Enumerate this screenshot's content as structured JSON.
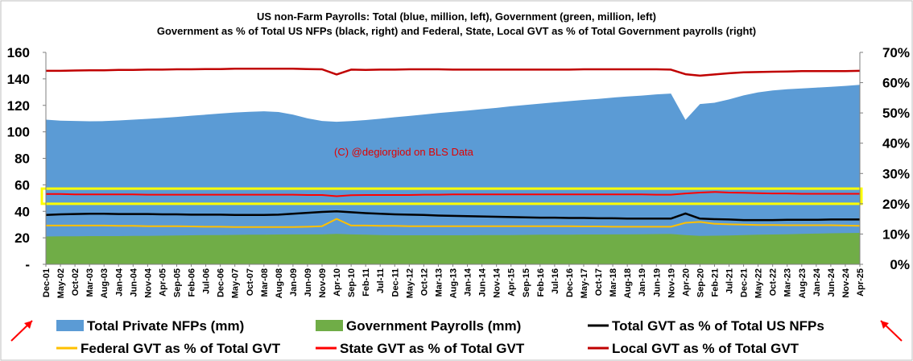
{
  "chart_data": {
    "type": "area",
    "title": "US non-Farm Payrolls: Total (blue, million, left), Government (green, million, left)",
    "subtitle": "Government as % of Total US NFPs (black, right) and Federal, State, Local GVT as % of Total Government payrolls (right)",
    "annotation": "(C) @degiorgiod on BLS Data",
    "x_tick_labels": [
      "Dec-01",
      "May-02",
      "Oct-02",
      "Mar-03",
      "Aug-03",
      "Jan-04",
      "Jun-04",
      "Nov-04",
      "Apr-05",
      "Sep-05",
      "Feb-06",
      "Jul-06",
      "Dec-06",
      "May-07",
      "Oct-07",
      "Mar-08",
      "Aug-08",
      "Jan-09",
      "Jun-09",
      "Nov-09",
      "Apr-10",
      "Sep-10",
      "Feb-11",
      "Jul-11",
      "Dec-11",
      "May-12",
      "Oct-12",
      "Mar-13",
      "Aug-13",
      "Jan-14",
      "Jun-14",
      "Nov-14",
      "Apr-15",
      "Sep-15",
      "Feb-16",
      "Jul-16",
      "Dec-16",
      "May-17",
      "Oct-17",
      "Mar-18",
      "Aug-18",
      "Jan-19",
      "Jun-19",
      "Nov-19",
      "Apr-20",
      "Sep-20",
      "Feb-21",
      "Jul-21",
      "Dec-21",
      "May-22",
      "Oct-22",
      "Mar-23",
      "Aug-23",
      "Jan-24",
      "Jun-24",
      "Nov-24",
      "Apr-25"
    ],
    "y_left": {
      "ticks": [
        "-",
        "20",
        "40",
        "60",
        "80",
        "100",
        "120",
        "140",
        "160"
      ],
      "range": [
        0,
        160
      ],
      "unit": "million"
    },
    "y_right": {
      "ticks": [
        "0%",
        "10%",
        "20%",
        "30%",
        "40%",
        "50%",
        "60%",
        "70%"
      ],
      "range": [
        0,
        70
      ],
      "unit": "%"
    },
    "grid": false,
    "legend_position": "bottom",
    "highlight_box": {
      "y_range_right_percent": [
        20,
        25
      ],
      "color": "#ffff00"
    },
    "series": [
      {
        "name": "Total Private NFPs (mm)",
        "axis": "left",
        "kind": "area",
        "color": "#5b9bd5",
        "values": [
          109.2,
          108.5,
          108.2,
          108.0,
          108.1,
          108.6,
          109.2,
          109.8,
          110.5,
          111.3,
          112.2,
          113.0,
          113.8,
          114.6,
          115.1,
          115.5,
          115.0,
          113.0,
          110.2,
          108.2,
          107.6,
          108.1,
          108.9,
          109.9,
          111.0,
          112.0,
          113.1,
          114.2,
          115.1,
          116.0,
          117.1,
          118.1,
          119.3,
          120.3,
          121.3,
          122.3,
          123.2,
          124.1,
          124.9,
          125.9,
          126.7,
          127.4,
          128.3,
          128.9,
          109.0,
          121.0,
          122.0,
          124.5,
          127.5,
          129.8,
          131.3,
          132.2,
          132.8,
          133.4,
          134.0,
          134.7,
          135.5
        ]
      },
      {
        "name": "Government Payrolls (mm)",
        "axis": "left",
        "kind": "area",
        "color": "#70ad47",
        "values": [
          21.0,
          21.1,
          21.2,
          21.3,
          21.3,
          21.3,
          21.4,
          21.5,
          21.6,
          21.7,
          21.9,
          22.0,
          22.1,
          22.2,
          22.3,
          22.4,
          22.5,
          22.6,
          22.6,
          22.6,
          23.0,
          22.6,
          22.3,
          22.0,
          21.9,
          21.9,
          21.9,
          21.9,
          21.9,
          21.9,
          22.0,
          22.0,
          22.1,
          22.2,
          22.3,
          22.3,
          22.4,
          22.5,
          22.5,
          22.6,
          22.6,
          22.7,
          22.8,
          22.9,
          22.0,
          21.5,
          21.6,
          21.8,
          22.0,
          22.3,
          22.5,
          22.7,
          23.0,
          23.2,
          23.4,
          23.6,
          23.7
        ]
      },
      {
        "name": "Total GVT as % of Total US NFPs",
        "axis": "right",
        "kind": "line",
        "color": "#000000",
        "values": [
          16.3,
          16.5,
          16.6,
          16.7,
          16.7,
          16.6,
          16.6,
          16.6,
          16.5,
          16.5,
          16.4,
          16.4,
          16.4,
          16.3,
          16.3,
          16.3,
          16.4,
          16.7,
          17.0,
          17.3,
          17.5,
          17.2,
          16.9,
          16.7,
          16.5,
          16.4,
          16.3,
          16.1,
          16.0,
          15.9,
          15.8,
          15.7,
          15.6,
          15.5,
          15.4,
          15.4,
          15.3,
          15.3,
          15.2,
          15.2,
          15.1,
          15.1,
          15.1,
          15.1,
          16.8,
          15.1,
          14.9,
          14.8,
          14.6,
          14.6,
          14.6,
          14.7,
          14.7,
          14.7,
          14.8,
          14.8,
          14.8
        ]
      },
      {
        "name": "Federal GVT as % of Total GVT",
        "axis": "right",
        "kind": "line",
        "color": "#ffc000",
        "values": [
          12.8,
          12.8,
          12.8,
          12.8,
          12.8,
          12.7,
          12.7,
          12.6,
          12.6,
          12.6,
          12.5,
          12.4,
          12.4,
          12.3,
          12.3,
          12.3,
          12.3,
          12.3,
          12.4,
          12.6,
          15.0,
          12.8,
          12.8,
          12.7,
          12.7,
          12.6,
          12.6,
          12.6,
          12.6,
          12.6,
          12.6,
          12.6,
          12.6,
          12.6,
          12.6,
          12.6,
          12.6,
          12.5,
          12.5,
          12.4,
          12.4,
          12.4,
          12.4,
          12.4,
          13.7,
          14.0,
          13.4,
          13.2,
          13.1,
          13.0,
          13.0,
          12.9,
          12.9,
          12.9,
          12.9,
          12.8,
          12.7
        ]
      },
      {
        "name": "State GVT as % of Total GVT",
        "axis": "right",
        "kind": "line",
        "color": "#ff0000",
        "values": [
          23.2,
          23.2,
          23.1,
          23.1,
          23.1,
          23.1,
          23.1,
          23.0,
          23.0,
          23.0,
          23.0,
          23.0,
          23.0,
          23.0,
          23.0,
          23.0,
          23.0,
          23.0,
          22.9,
          22.9,
          22.5,
          22.8,
          22.9,
          22.9,
          22.9,
          22.9,
          23.0,
          23.0,
          23.1,
          23.1,
          23.1,
          23.1,
          23.1,
          23.1,
          23.1,
          23.1,
          23.1,
          23.1,
          23.1,
          23.1,
          23.1,
          23.1,
          23.0,
          23.0,
          23.4,
          23.7,
          23.9,
          23.7,
          23.6,
          23.5,
          23.4,
          23.4,
          23.3,
          23.3,
          23.3,
          23.3,
          23.3
        ]
      },
      {
        "name": "Local GVT as % of Total GVT",
        "axis": "right",
        "kind": "line",
        "color": "#c00000",
        "values": [
          63.9,
          63.9,
          64.0,
          64.1,
          64.1,
          64.2,
          64.2,
          64.3,
          64.3,
          64.4,
          64.4,
          64.5,
          64.5,
          64.6,
          64.6,
          64.6,
          64.6,
          64.6,
          64.5,
          64.4,
          62.7,
          64.3,
          64.2,
          64.3,
          64.3,
          64.4,
          64.4,
          64.4,
          64.3,
          64.3,
          64.3,
          64.3,
          64.3,
          64.3,
          64.3,
          64.3,
          64.3,
          64.4,
          64.4,
          64.4,
          64.4,
          64.4,
          64.4,
          64.3,
          62.8,
          62.3,
          62.7,
          63.1,
          63.4,
          63.5,
          63.6,
          63.7,
          63.8,
          63.8,
          63.8,
          63.8,
          63.9
        ]
      }
    ]
  }
}
